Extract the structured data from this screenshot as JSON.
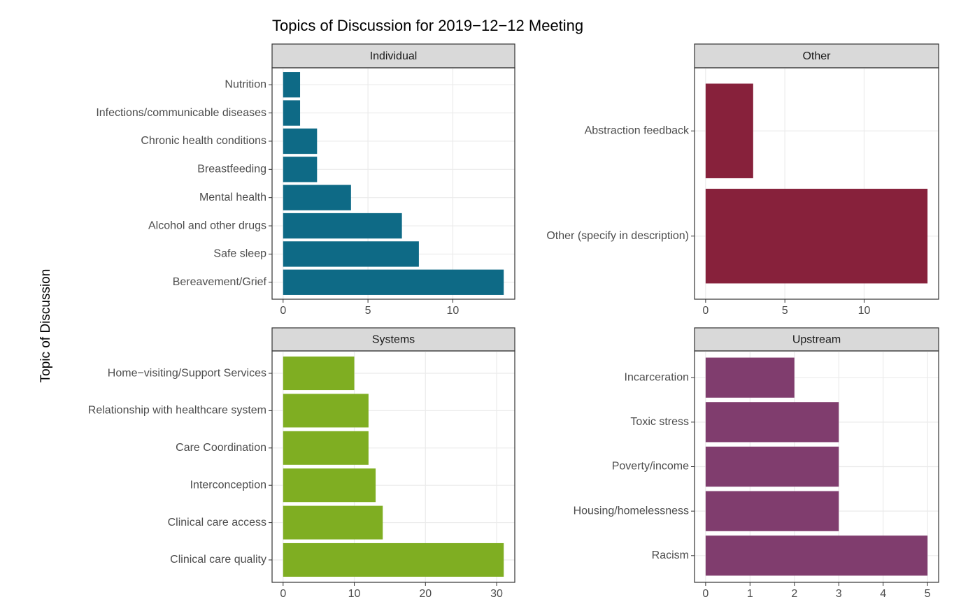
{
  "title": "Topics of Discussion for 2019−12−12 Meeting",
  "ylabel": "Topic of Discussion",
  "chart_data": [
    {
      "type": "bar",
      "orientation": "horizontal",
      "title": "Individual",
      "color": "#0e6a86",
      "categories": [
        "Nutrition",
        "Infections/communicable diseases",
        "Chronic health conditions",
        "Breastfeeding",
        "Mental health",
        "Alcohol and other drugs",
        "Safe sleep",
        "Bereavement/Grief"
      ],
      "values": [
        1,
        1,
        2,
        2,
        4,
        7,
        8,
        13
      ],
      "xlim": [
        -0.65,
        13.65
      ],
      "xticks": [
        0,
        5,
        10
      ],
      "grid": true
    },
    {
      "type": "bar",
      "orientation": "horizontal",
      "title": "Other",
      "color": "#87213b",
      "categories": [
        "Abstraction feedback",
        "Other (specify in description)"
      ],
      "values": [
        3,
        14
      ],
      "xlim": [
        -0.7,
        14.7
      ],
      "xticks": [
        0,
        5,
        10
      ],
      "grid": true
    },
    {
      "type": "bar",
      "orientation": "horizontal",
      "title": "Systems",
      "color": "#7fae22",
      "categories": [
        "Home−visiting/Support Services",
        "Relationship with healthcare system",
        "Care Coordination",
        "Interconception",
        "Clinical care access",
        "Clinical care quality"
      ],
      "values": [
        10,
        12,
        12,
        13,
        14,
        31
      ],
      "xlim": [
        -1.55,
        32.55
      ],
      "xticks": [
        0,
        10,
        20,
        30
      ],
      "grid": true
    },
    {
      "type": "bar",
      "orientation": "horizontal",
      "title": "Upstream",
      "color": "#803d6e",
      "categories": [
        "Incarceration",
        "Toxic stress",
        "Poverty/income",
        "Housing/homelessness",
        "Racism"
      ],
      "values": [
        2,
        3,
        3,
        3,
        5
      ],
      "xlim": [
        -0.25,
        5.25
      ],
      "xticks": [
        0,
        1,
        2,
        3,
        4,
        5
      ],
      "grid": true
    }
  ]
}
